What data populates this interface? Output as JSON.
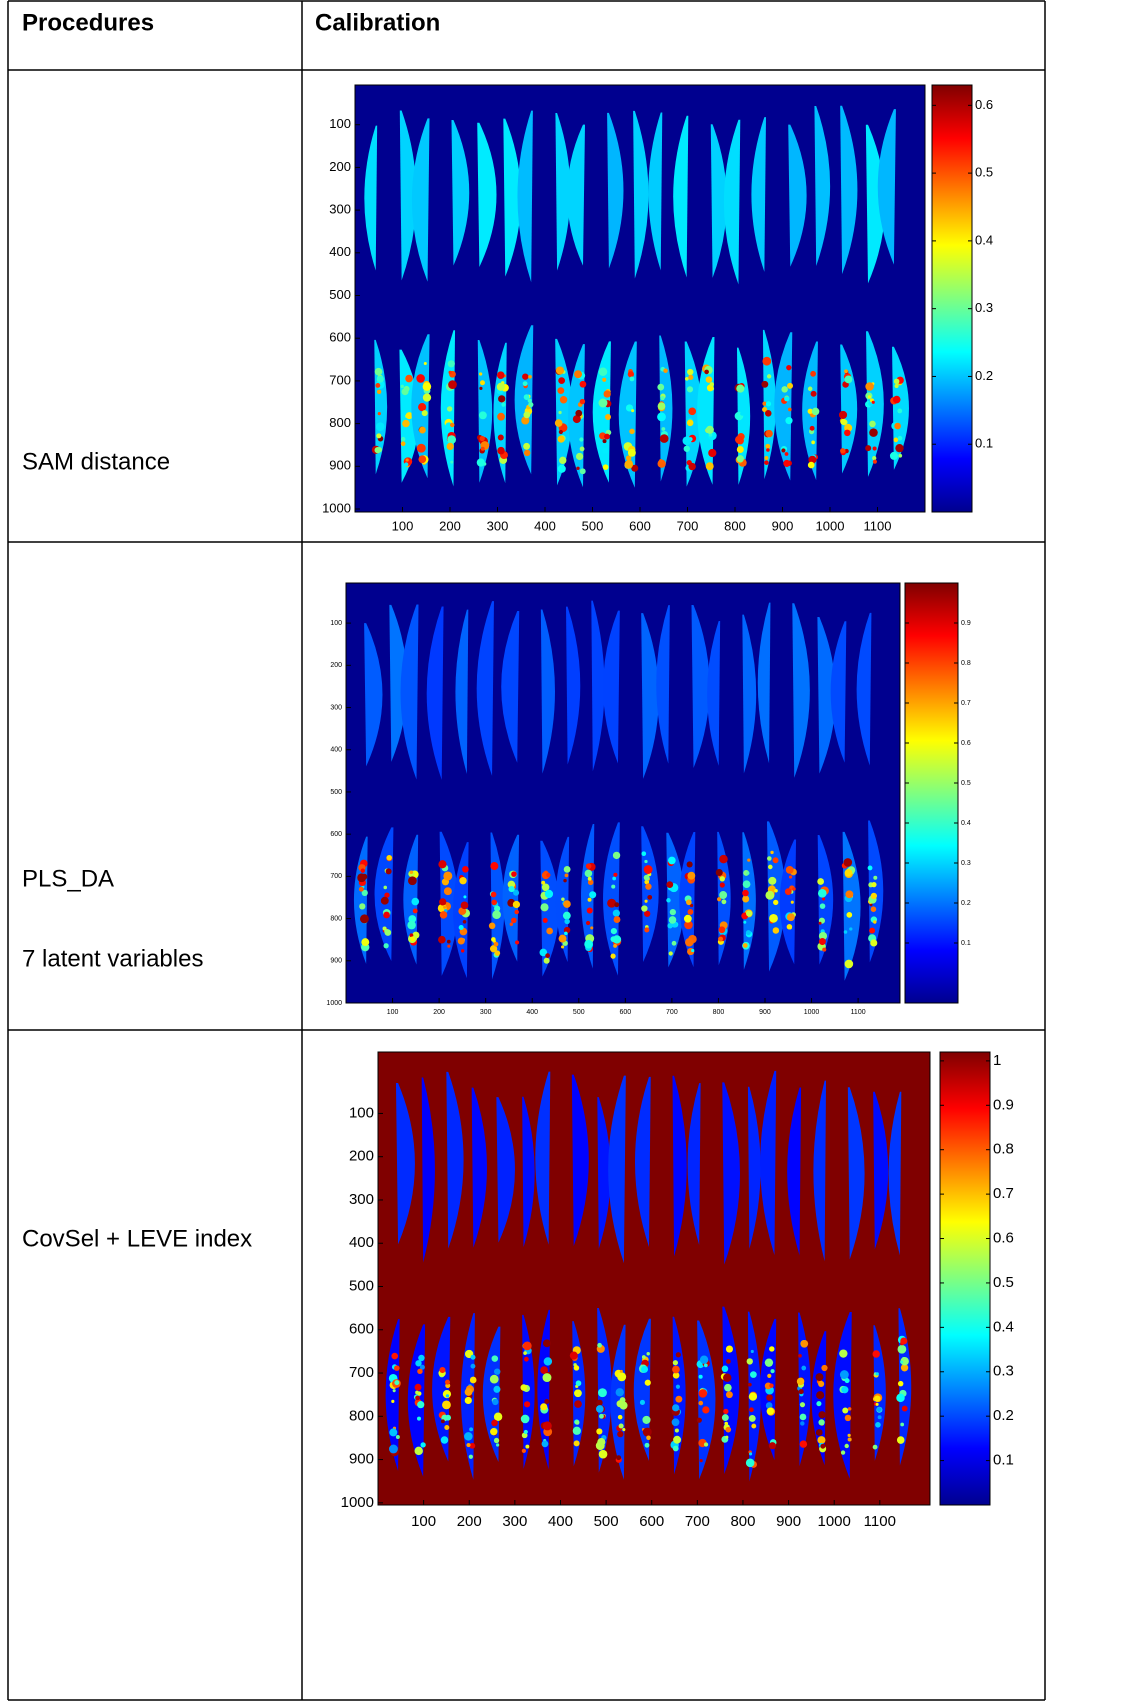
{
  "table": {
    "header": [
      "Procedures",
      "Calibration"
    ],
    "rows": [
      {
        "procedure": [
          "SAM distance"
        ],
        "plot": {
          "xlim": [
            0,
            1200
          ],
          "ylim": [
            7,
            1007
          ],
          "colorbar_lim": [
            0,
            0.63
          ],
          "xticks": [
            100,
            200,
            300,
            400,
            500,
            600,
            700,
            800,
            900,
            1000,
            1100
          ],
          "yticks": [
            100,
            200,
            300,
            400,
            500,
            600,
            700,
            800,
            900,
            1000
          ],
          "colorbar_ticks": [
            0.1,
            0.2,
            0.3,
            0.4,
            0.5,
            0.6
          ]
        }
      },
      {
        "procedure": [
          "PLS_DA",
          "7 latent variables"
        ],
        "plot": {
          "xlim": [
            0,
            1190
          ],
          "ylim": [
            5,
            1000
          ],
          "colorbar_lim": [
            -0.05,
            1
          ],
          "xticks": [
            100,
            200,
            300,
            400,
            500,
            600,
            700,
            800,
            900,
            1000,
            1100
          ],
          "yticks": [
            100,
            200,
            300,
            400,
            500,
            600,
            700,
            800,
            900,
            1000
          ],
          "colorbar_ticks": [
            0.1,
            0.2,
            0.3,
            0.4,
            0.5,
            0.6,
            0.7,
            0.8,
            0.9
          ]
        }
      },
      {
        "procedure": [
          "CovSel + LEVE index"
        ],
        "plot": {
          "xlim": [
            0,
            1210
          ],
          "ylim": [
            -42,
            1005
          ],
          "colorbar_lim": [
            0,
            1.02
          ],
          "xticks": [
            100,
            200,
            300,
            400,
            500,
            600,
            700,
            800,
            900,
            1000,
            1100
          ],
          "yticks": [
            100,
            200,
            300,
            400,
            500,
            600,
            700,
            800,
            900,
            1000
          ],
          "colorbar_ticks": [
            0.1,
            0.2,
            0.3,
            0.4,
            0.5,
            0.6,
            0.7,
            0.8,
            0.9,
            1
          ]
        }
      }
    ]
  }
}
